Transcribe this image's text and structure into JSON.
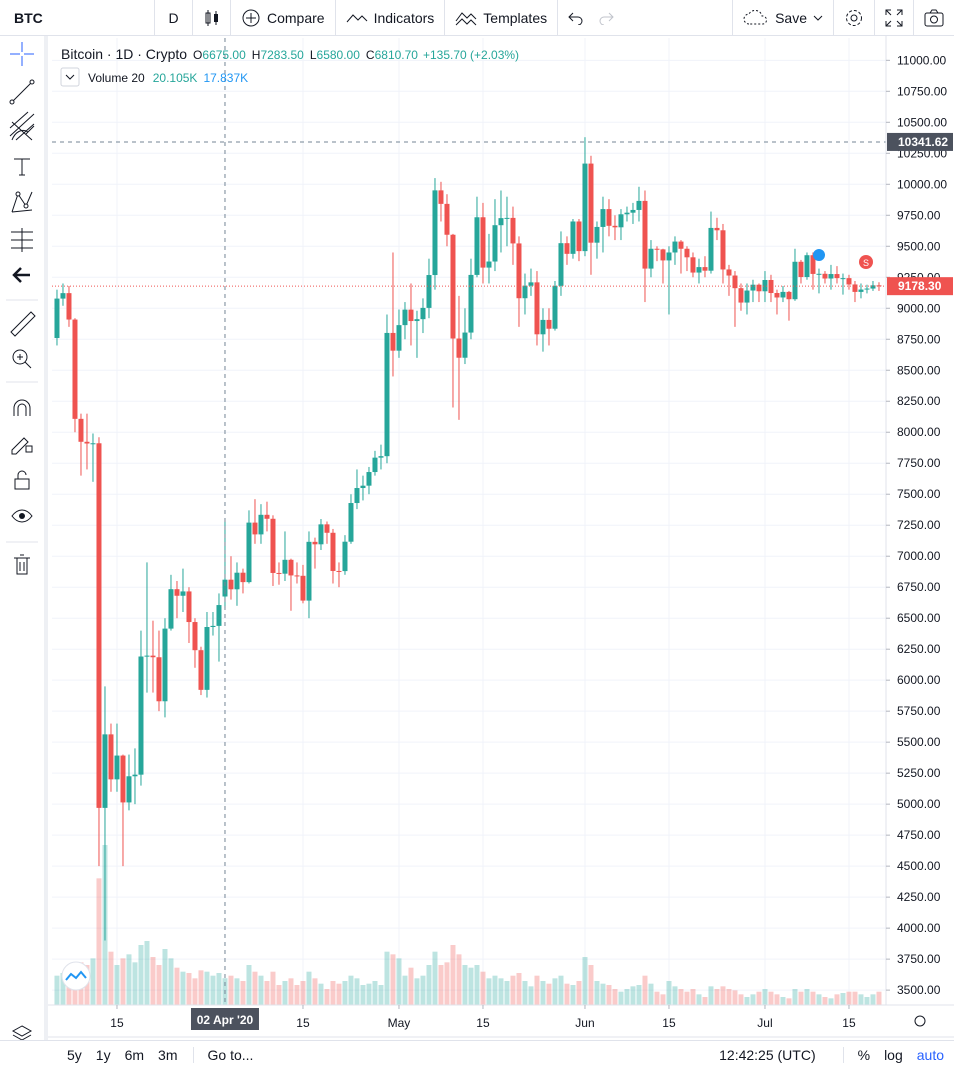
{
  "toolbar": {
    "symbol": "BTC",
    "interval": "D",
    "compare": "Compare",
    "indicators": "Indicators",
    "templates": "Templates",
    "save": "Save"
  },
  "chart_data": {
    "type": "candlestick",
    "title": "Bitcoin · 1D · Crypto",
    "ohlc_legend": [
      {
        "label": "O",
        "value": "6675.00"
      },
      {
        "label": "H",
        "value": "7283.50"
      },
      {
        "label": "L",
        "value": "6580.00"
      },
      {
        "label": "C",
        "value": "6810.70"
      }
    ],
    "change": "+135.70 (+2.03%)",
    "volume_legend": {
      "name": "Volume 20",
      "value": "20.105K",
      "ma": "17.837K"
    },
    "up_color": "#26a69a",
    "down_color": "#ef5350",
    "open": [
      8760,
      9078,
      9122,
      8909,
      8108,
      7923,
      7909,
      7911,
      4970,
      5563,
      5200,
      5392,
      5014,
      5225,
      5238,
      6191,
      6198,
      6185,
      5830,
      6416,
      6734,
      6681,
      6716,
      6469,
      6242,
      5922,
      6429,
      6438,
      6675,
      6810.7,
      6733,
      6867,
      6791,
      7271,
      7176,
      7334,
      7302,
      6865,
      6859,
      6971,
      6845,
      6842,
      6642,
      7116,
      7096,
      7257,
      7189,
      6881,
      6880,
      7117,
      7429,
      7550,
      7569,
      7679,
      7795,
      7807,
      8801,
      8658,
      8864,
      8989,
      8897,
      8912,
      9003,
      9268,
      9951,
      9842,
      9593,
      8756,
      8601,
      8804,
      9269,
      9734,
      9328,
      9377,
      9670,
      9727,
      9729,
      9523,
      9081,
      9182,
      9209,
      8790,
      8906,
      8835,
      9181,
      9525,
      9439,
      9700,
      9461,
      10167,
      9529,
      9656,
      9800,
      9665,
      9653,
      9758,
      9771,
      9793,
      9866,
      9320,
      9480,
      9475,
      9386,
      9450,
      9538,
      9480,
      9411,
      9288,
      9332,
      9303,
      9648,
      9629,
      9313,
      9264,
      9162,
      9046,
      9143,
      9190,
      9137,
      9228,
      9123,
      9087,
      9132,
      9073,
      9375,
      9252,
      9428,
      9277,
      9278,
      9240,
      9276,
      9243,
      9243,
      9192,
      9132,
      9151,
      9159,
      9185
    ],
    "high": [
      9150,
      9200,
      9180,
      8920,
      8150,
      8150,
      7990,
      7960,
      5950,
      5650,
      5650,
      5400,
      5400,
      5450,
      6400,
      6950,
      6480,
      6400,
      6500,
      6850,
      6800,
      6900,
      6750,
      6500,
      6270,
      6550,
      6550,
      6700,
      7283.5,
      7000,
      6950,
      6900,
      7370,
      7460,
      7420,
      7440,
      7330,
      6950,
      7200,
      6980,
      6950,
      6930,
      7200,
      7150,
      7300,
      7280,
      7220,
      6950,
      7170,
      7500,
      7700,
      7650,
      7720,
      7850,
      7900,
      8950,
      9450,
      8990,
      9050,
      9200,
      8980,
      9080,
      9400,
      10050,
      10020,
      9920,
      9600,
      9100,
      9000,
      9400,
      9900,
      9850,
      9600,
      9880,
      9950,
      9900,
      9820,
      9580,
      9280,
      9320,
      9300,
      9000,
      9000,
      9220,
      9620,
      9580,
      9720,
      9720,
      10380,
      10230,
      9700,
      9900,
      9880,
      9750,
      9800,
      9820,
      9850,
      9980,
      9950,
      9550,
      9500,
      9480,
      9500,
      9580,
      9550,
      9500,
      9450,
      9400,
      9420,
      9780,
      9730,
      9680,
      9350,
      9300,
      9200,
      9200,
      9230,
      9200,
      9300,
      9270,
      9150,
      9180,
      9140,
      9480,
      9390,
      9450,
      9450,
      9320,
      9300,
      9350,
      9340,
      9280,
      9270,
      9220,
      9200,
      9190,
      9220,
      9210
    ],
    "low": [
      8700,
      9020,
      8850,
      8000,
      7650,
      7700,
      7600,
      4500,
      3900,
      5100,
      5100,
      4500,
      4950,
      5000,
      5150,
      5900,
      5900,
      5750,
      5700,
      6400,
      6500,
      6550,
      6300,
      6100,
      5880,
      5860,
      6360,
      6150,
      6580,
      6650,
      6600,
      6700,
      6780,
      7100,
      7100,
      7200,
      6760,
      6770,
      6800,
      6560,
      6780,
      6620,
      6500,
      6900,
      7050,
      7100,
      6780,
      6750,
      6850,
      7100,
      7380,
      7450,
      7500,
      7650,
      7700,
      7750,
      8450,
      8600,
      8750,
      8700,
      8600,
      8800,
      8920,
      9150,
      9700,
      9500,
      8200,
      8100,
      8550,
      8750,
      9250,
      9200,
      9200,
      9300,
      9450,
      9500,
      9350,
      8850,
      8950,
      9100,
      8700,
      8650,
      8700,
      8820,
      9100,
      9350,
      9400,
      9380,
      9420,
      9270,
      9400,
      9450,
      9580,
      9550,
      9550,
      9700,
      9680,
      9700,
      9050,
      9250,
      9380,
      9200,
      8950,
      9350,
      9280,
      9300,
      9250,
      9200,
      9250,
      9280,
      9550,
      9200,
      9100,
      8850,
      8980,
      8950,
      9050,
      9050,
      9050,
      9050,
      8950,
      9050,
      8900,
      9060,
      9200,
      9230,
      9150,
      9120,
      9200,
      9150,
      9200,
      9110,
      9150,
      9050,
      9080,
      9120,
      9140,
      9140
    ],
    "close": [
      9078,
      9122,
      8909,
      8108,
      7923,
      7909,
      7911,
      4970,
      5563,
      5200,
      5392,
      5014,
      5225,
      5238,
      6191,
      6198,
      6185,
      5830,
      6416,
      6734,
      6681,
      6716,
      6469,
      6242,
      5922,
      6429,
      6438,
      6606,
      6810.7,
      6733,
      6867,
      6791,
      7271,
      7176,
      7334,
      7302,
      6865,
      6859,
      6971,
      6845,
      6842,
      6642,
      7116,
      7096,
      7257,
      7189,
      6881,
      6880,
      7117,
      7429,
      7550,
      7569,
      7679,
      7795,
      7807,
      8801,
      8658,
      8864,
      8989,
      8897,
      8912,
      9003,
      9268,
      9951,
      9842,
      9593,
      8756,
      8601,
      8804,
      9269,
      9734,
      9328,
      9377,
      9670,
      9727,
      9729,
      9523,
      9081,
      9182,
      9209,
      8790,
      8906,
      8835,
      9181,
      9525,
      9439,
      9700,
      9461,
      10167,
      9529,
      9656,
      9800,
      9665,
      9653,
      9758,
      9771,
      9793,
      9866,
      9320,
      9480,
      9475,
      9386,
      9450,
      9538,
      9480,
      9411,
      9288,
      9332,
      9303,
      9648,
      9629,
      9313,
      9264,
      9162,
      9046,
      9143,
      9190,
      9137,
      9228,
      9123,
      9087,
      9132,
      9073,
      9375,
      9252,
      9428,
      9277,
      9278,
      9240,
      9276,
      9243,
      9243,
      9192,
      9132,
      9151,
      9159,
      9185,
      9178.3
    ],
    "volume": [
      22,
      24,
      20,
      28,
      32,
      30,
      35,
      95,
      120,
      40,
      30,
      35,
      38,
      32,
      45,
      48,
      36,
      30,
      42,
      35,
      28,
      25,
      24,
      20,
      26,
      25,
      22,
      24,
      20.105,
      22,
      20,
      18,
      30,
      25,
      22,
      18,
      25,
      15,
      18,
      20,
      15,
      18,
      25,
      20,
      16,
      12,
      18,
      16,
      18,
      22,
      20,
      15,
      16,
      18,
      15,
      40,
      38,
      35,
      22,
      28,
      20,
      22,
      30,
      40,
      30,
      32,
      45,
      38,
      30,
      28,
      30,
      25,
      20,
      22,
      20,
      18,
      22,
      24,
      18,
      14,
      22,
      18,
      16,
      20,
      22,
      16,
      15,
      18,
      36,
      30,
      18,
      16,
      15,
      12,
      10,
      12,
      14,
      15,
      22,
      16,
      10,
      8,
      18,
      14,
      12,
      10,
      12,
      8,
      6,
      14,
      12,
      14,
      12,
      11,
      8,
      6,
      8,
      10,
      12,
      10,
      8,
      6,
      5,
      12,
      10,
      12,
      10,
      8,
      6,
      5,
      8,
      9,
      10,
      10,
      8,
      6,
      8,
      10
    ],
    "xlim": [
      -0.83,
      138.17
    ],
    "xticks": [
      {
        "value": 10,
        "label": "15"
      },
      {
        "value": 41,
        "label": "15"
      },
      {
        "value": 57,
        "label": "May"
      },
      {
        "value": 71,
        "label": "15"
      },
      {
        "value": 88,
        "label": "Jun"
      },
      {
        "value": 102,
        "label": "15"
      },
      {
        "value": 118,
        "label": "Jul"
      },
      {
        "value": 132,
        "label": "15"
      }
    ],
    "ylim": [
      3380,
      11180
    ],
    "yticks": [
      {
        "value": 3500,
        "label": "3500.00"
      },
      {
        "value": 3750,
        "label": "3750.00"
      },
      {
        "value": 4000,
        "label": "4000.00"
      },
      {
        "value": 4250,
        "label": "4250.00"
      },
      {
        "value": 4500,
        "label": "4500.00"
      },
      {
        "value": 4750,
        "label": "4750.00"
      },
      {
        "value": 5000,
        "label": "5000.00"
      },
      {
        "value": 5250,
        "label": "5250.00"
      },
      {
        "value": 5500,
        "label": "5500.00"
      },
      {
        "value": 5750,
        "label": "5750.00"
      },
      {
        "value": 6000,
        "label": "6000.00"
      },
      {
        "value": 6250,
        "label": "6250.00"
      },
      {
        "value": 6500,
        "label": "6500.00"
      },
      {
        "value": 6750,
        "label": "6750.00"
      },
      {
        "value": 7000,
        "label": "7000.00"
      },
      {
        "value": 7250,
        "label": "7250.00"
      },
      {
        "value": 7500,
        "label": "7500.00"
      },
      {
        "value": 7750,
        "label": "7750.00"
      },
      {
        "value": 8000,
        "label": "8000.00"
      },
      {
        "value": 8250,
        "label": "8250.00"
      },
      {
        "value": 8500,
        "label": "8500.00"
      },
      {
        "value": 8750,
        "label": "8750.00"
      },
      {
        "value": 9000,
        "label": "9000.00"
      },
      {
        "value": 9250,
        "label": "9250.00"
      },
      {
        "value": 9500,
        "label": "9500.00"
      },
      {
        "value": 9750,
        "label": "9750.00"
      },
      {
        "value": 10000,
        "label": "10000.00"
      },
      {
        "value": 10250,
        "label": "10250.00"
      },
      {
        "value": 10500,
        "label": "10500.00"
      },
      {
        "value": 10750,
        "label": "10750.00"
      },
      {
        "value": 11000,
        "label": "11000.00"
      }
    ],
    "grid": true,
    "crosshair": {
      "x": 28,
      "x_label": "02 Apr '20",
      "y": 10341.62,
      "y_label": "10341.62"
    },
    "last_price": {
      "value": 9178.3,
      "label": "9178.30"
    },
    "signal_marker": "S"
  },
  "bottom_bar": {
    "ranges": [
      "5y",
      "1y",
      "6m",
      "3m"
    ],
    "goto": "Go to...",
    "clock": "12:42:25 (UTC)",
    "percent": "%",
    "log": "log",
    "auto": "auto"
  }
}
